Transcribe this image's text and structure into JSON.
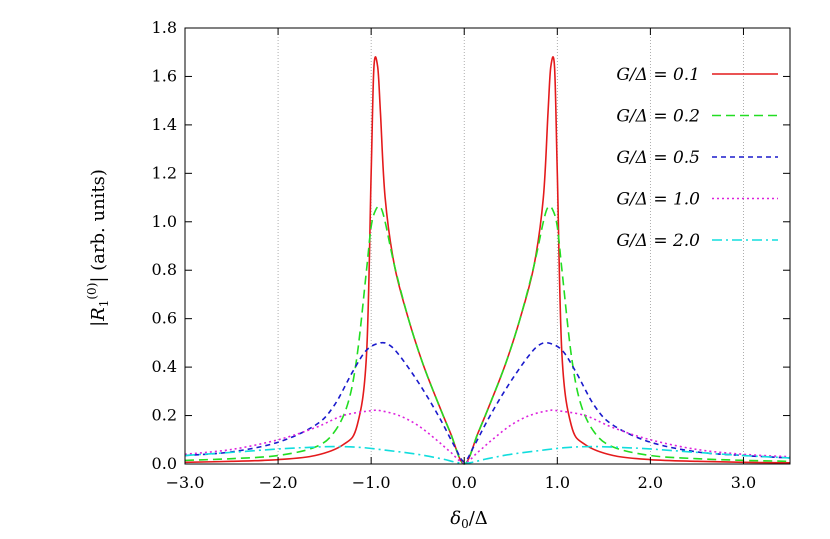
{
  "chart_data": {
    "type": "line",
    "title": "",
    "xlabel": "δ0/Δ",
    "ylabel": "|R1(0)| (arb. units)",
    "xlim": [
      -3.0,
      3.5
    ],
    "ylim": [
      0.0,
      1.8
    ],
    "grid": "vertical dotted at x ticks",
    "legend_position": "top-right",
    "x_ticks": [
      -3.0,
      -2.0,
      -1.0,
      0.0,
      1.0,
      2.0,
      3.0
    ],
    "x_tick_labels": [
      "−3.0",
      "−2.0",
      "−1.0",
      "0.0",
      "1.0",
      "2.0",
      "3.0"
    ],
    "y_ticks": [
      0.0,
      0.2,
      0.4,
      0.6,
      0.8,
      1.0,
      1.2,
      1.4,
      1.6,
      1.8
    ],
    "y_tick_labels": [
      "0.0",
      "0.2",
      "0.4",
      "0.6",
      "0.8",
      "1.0",
      "1.2",
      "1.4",
      "1.6",
      "1.8"
    ],
    "series": [
      {
        "name": "G/Δ = 0.1",
        "color": "#e41a1c",
        "dash": "solid",
        "x": [
          -3.0,
          -2.5,
          -2.0,
          -1.6,
          -1.3,
          -1.15,
          -1.05,
          -1.0,
          -0.97,
          -0.93,
          -0.9,
          -0.85,
          -0.75,
          -0.6,
          -0.45,
          -0.3,
          -0.15,
          0.0,
          0.15,
          0.3,
          0.45,
          0.6,
          0.75,
          0.85,
          0.9,
          0.93,
          0.97,
          1.0,
          1.05,
          1.15,
          1.3,
          1.6,
          2.0,
          2.5,
          3.0,
          3.5
        ],
        "y": [
          0.007,
          0.011,
          0.018,
          0.035,
          0.08,
          0.16,
          0.45,
          1.2,
          1.64,
          1.64,
          1.45,
          1.1,
          0.82,
          0.6,
          0.42,
          0.27,
          0.13,
          0.0,
          0.13,
          0.27,
          0.42,
          0.6,
          0.82,
          1.1,
          1.45,
          1.64,
          1.64,
          1.2,
          0.45,
          0.16,
          0.08,
          0.035,
          0.018,
          0.011,
          0.007,
          0.005
        ]
      },
      {
        "name": "G/Δ = 0.2",
        "color": "#22dd22",
        "dash": "9,5",
        "x": [
          -3.0,
          -2.5,
          -2.0,
          -1.6,
          -1.4,
          -1.25,
          -1.15,
          -1.05,
          -1.0,
          -0.95,
          -0.9,
          -0.85,
          -0.75,
          -0.6,
          -0.45,
          -0.3,
          -0.15,
          0.0,
          0.15,
          0.3,
          0.45,
          0.6,
          0.75,
          0.85,
          0.9,
          0.95,
          1.0,
          1.05,
          1.15,
          1.25,
          1.4,
          1.6,
          2.0,
          2.5,
          3.0,
          3.5
        ],
        "y": [
          0.015,
          0.022,
          0.035,
          0.07,
          0.13,
          0.25,
          0.45,
          0.8,
          0.98,
          1.05,
          1.06,
          1.0,
          0.82,
          0.6,
          0.42,
          0.27,
          0.13,
          0.0,
          0.13,
          0.27,
          0.42,
          0.6,
          0.82,
          1.0,
          1.06,
          1.05,
          0.98,
          0.8,
          0.45,
          0.25,
          0.13,
          0.07,
          0.035,
          0.022,
          0.015,
          0.011
        ]
      },
      {
        "name": "G/Δ = 0.5",
        "color": "#1a1acc",
        "dash": "5,4",
        "x": [
          -3.0,
          -2.5,
          -2.0,
          -1.6,
          -1.4,
          -1.2,
          -1.05,
          -0.9,
          -0.8,
          -0.7,
          -0.55,
          -0.4,
          -0.25,
          -0.1,
          0.0,
          0.1,
          0.25,
          0.4,
          0.55,
          0.7,
          0.8,
          0.9,
          1.05,
          1.2,
          1.4,
          1.6,
          2.0,
          2.5,
          3.0,
          3.5
        ],
        "y": [
          0.035,
          0.05,
          0.09,
          0.16,
          0.24,
          0.38,
          0.47,
          0.5,
          0.49,
          0.45,
          0.37,
          0.28,
          0.18,
          0.07,
          0.01,
          0.07,
          0.18,
          0.28,
          0.37,
          0.45,
          0.49,
          0.5,
          0.47,
          0.38,
          0.24,
          0.16,
          0.09,
          0.05,
          0.035,
          0.025
        ]
      },
      {
        "name": "G/Δ = 1.0",
        "color": "#dd22dd",
        "dash": "2,3",
        "x": [
          -3.0,
          -2.5,
          -2.0,
          -1.6,
          -1.3,
          -1.0,
          -0.9,
          -0.7,
          -0.5,
          -0.3,
          -0.15,
          0.0,
          0.15,
          0.3,
          0.5,
          0.7,
          0.9,
          1.0,
          1.3,
          1.6,
          2.0,
          2.5,
          3.0,
          3.5
        ],
        "y": [
          0.04,
          0.06,
          0.1,
          0.15,
          0.2,
          0.22,
          0.22,
          0.2,
          0.16,
          0.1,
          0.05,
          0.005,
          0.05,
          0.1,
          0.16,
          0.2,
          0.22,
          0.22,
          0.2,
          0.15,
          0.1,
          0.06,
          0.04,
          0.03
        ]
      },
      {
        "name": "G/Δ = 2.0",
        "color": "#11dddd",
        "dash": "10,4,2,4",
        "x": [
          -3.0,
          -2.5,
          -2.0,
          -1.7,
          -1.4,
          -1.1,
          -0.8,
          -0.5,
          -0.25,
          0.0,
          0.25,
          0.5,
          0.8,
          1.1,
          1.4,
          1.7,
          2.0,
          2.5,
          3.0,
          3.5
        ],
        "y": [
          0.035,
          0.048,
          0.062,
          0.068,
          0.072,
          0.068,
          0.055,
          0.04,
          0.022,
          0.003,
          0.022,
          0.04,
          0.055,
          0.068,
          0.072,
          0.068,
          0.062,
          0.048,
          0.035,
          0.025
        ]
      }
    ]
  }
}
